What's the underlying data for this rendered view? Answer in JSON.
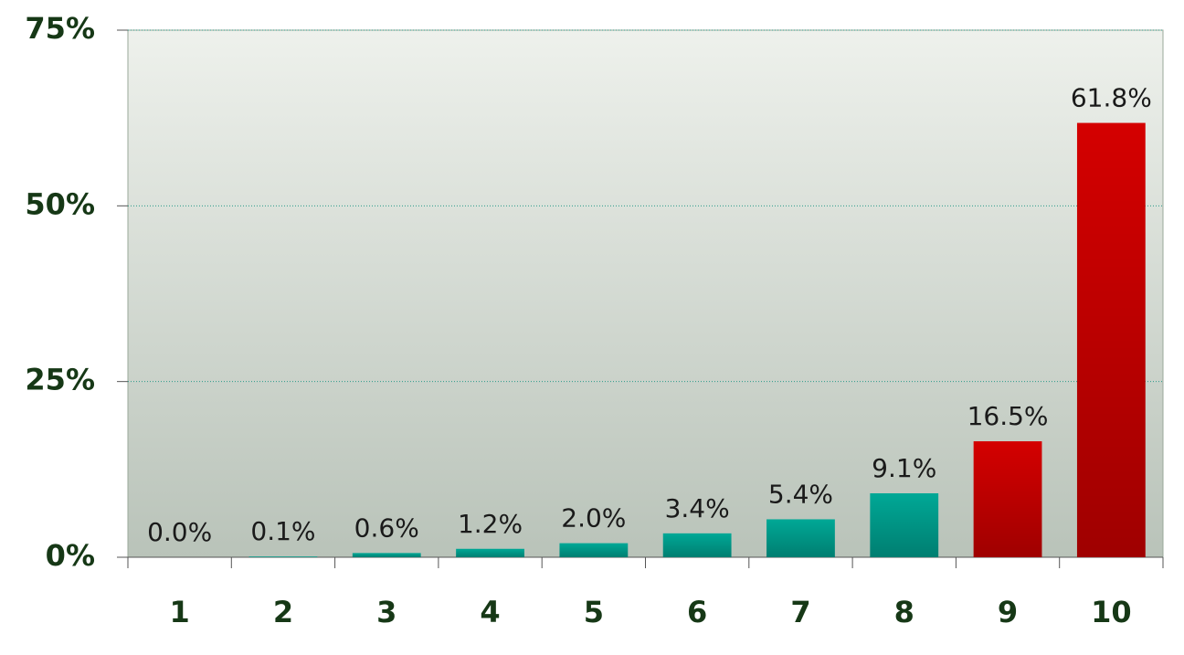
{
  "chart_data": {
    "type": "bar",
    "categories": [
      "1",
      "2",
      "3",
      "4",
      "5",
      "6",
      "7",
      "8",
      "9",
      "10"
    ],
    "values": [
      0.0,
      0.1,
      0.6,
      1.2,
      2.0,
      3.4,
      5.4,
      9.1,
      16.5,
      61.8
    ],
    "value_labels": [
      "0.0%",
      "0.1%",
      "0.6%",
      "1.2%",
      "2.0%",
      "3.4%",
      "5.4%",
      "9.1%",
      "16.5%",
      "61.8%"
    ],
    "colors": [
      "#00a896",
      "#00a896",
      "#00a896",
      "#00a896",
      "#00a896",
      "#00a896",
      "#00a896",
      "#00a896",
      "#d40000",
      "#d40000"
    ],
    "ylim": [
      0,
      75
    ],
    "yticks": [
      {
        "value": 0,
        "label": "0%"
      },
      {
        "value": 25,
        "label": "25%"
      },
      {
        "value": 50,
        "label": "50%"
      },
      {
        "value": 75,
        "label": "75%"
      }
    ],
    "grid": true
  }
}
